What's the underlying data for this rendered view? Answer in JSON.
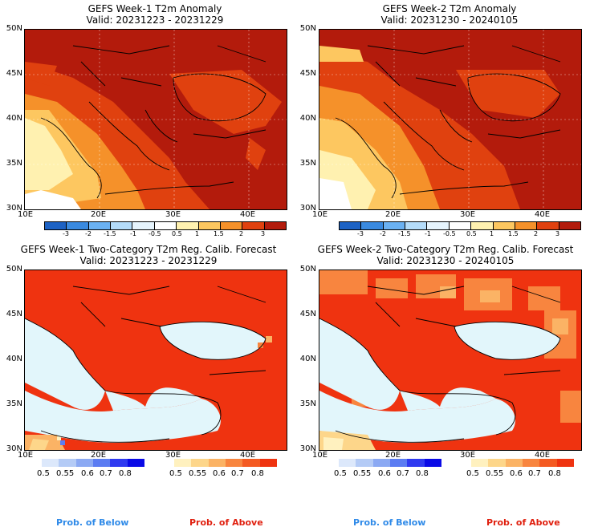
{
  "panels": [
    {
      "title": "GEFS Week-1 T2m Anomaly",
      "valid": "Valid: 20231223 - 20231229"
    },
    {
      "title": "GEFS Week-2 T2m Anomaly",
      "valid": "Valid: 20231230 - 20240105"
    },
    {
      "title": "GEFS Week-1 Two-Category T2m Reg. Calib. Forecast",
      "valid": "Valid: 20231223 - 20231229"
    },
    {
      "title": "GEFS Week-2 Two-Category T2m Reg. Calib. Forecast",
      "valid": "Valid: 20231230 - 20240105"
    }
  ],
  "lat_labels": [
    "50N",
    "45N",
    "40N",
    "35N",
    "30N"
  ],
  "lon_labels": [
    "10E",
    "20E",
    "30E",
    "40E"
  ],
  "anomaly_colorbar": {
    "ticks": [
      "-3",
      "-2",
      "-1.5",
      "-1",
      "-0.5",
      "0.5",
      "1",
      "1.5",
      "2",
      "3"
    ],
    "colors": [
      "#1d62c4",
      "#3a8ae0",
      "#6bb1f2",
      "#b4dcfa",
      "#e6f4fd",
      "#ffffff",
      "#fff1b0",
      "#fdc760",
      "#f5912a",
      "#e0410f",
      "#b31b0c"
    ]
  },
  "below_bar": {
    "ticks": [
      "0.5",
      "0.55",
      "0.6",
      "0.7",
      "0.8"
    ],
    "colors": [
      "#dce8fb",
      "#b4cbf6",
      "#8ba9f3",
      "#5b7cf2",
      "#2f3af0",
      "#0a0ae6"
    ]
  },
  "above_bar": {
    "ticks": [
      "0.5",
      "0.55",
      "0.6",
      "0.7",
      "0.8"
    ],
    "colors": [
      "#fff1bf",
      "#fdd68a",
      "#fbb365",
      "#f8853f",
      "#f45a22",
      "#ef3310"
    ]
  },
  "legend": {
    "below": "Prob. of Below",
    "above": "Prob. of Above"
  },
  "colors": {
    "sea": "#e2f6fb",
    "warm_dark": "#b31b0c",
    "warm": "#e0410f",
    "prob_above": "#ef3310"
  }
}
